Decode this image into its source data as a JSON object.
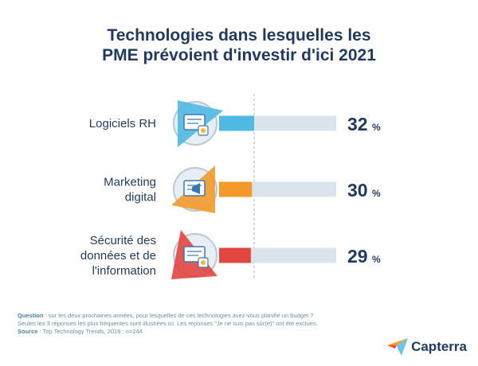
{
  "chart_data": {
    "type": "bar",
    "title": [
      "Technologies dans lesquelles les",
      "PME prévoient d'investir d'ici 2021"
    ],
    "categories": [
      [
        "Logiciels RH"
      ],
      [
        "Marketing",
        "digital"
      ],
      [
        "Sécurité des",
        "données et de",
        "l'information"
      ]
    ],
    "values": [
      32,
      30,
      29
    ],
    "value_labels": [
      "32",
      "30",
      "29"
    ],
    "value_suffix": "%",
    "colors": [
      "#4fb8e3",
      "#f39a2b",
      "#e3453f"
    ],
    "track_color": "#dbe4ec",
    "icons": [
      "hr-software-icon",
      "megaphone-icon",
      "secure-data-icon"
    ],
    "xlim": [
      0,
      100
    ],
    "grid": false,
    "legend": "none"
  },
  "footnote": {
    "question_label": "Question",
    "question_text": " : sur les deux prochaines années, pour lesquelles de ces technologies avez-vous planifié un budget ?",
    "note": "Seules les 3 réponses les plus fréquentes sont illustrées ici. Les réponses \"Je ne suis pas sûr(e)\" ont été exclues.",
    "source_label": "Source",
    "source_text": " : Top Technology Trends, 2019 ; n=244"
  },
  "brand": {
    "name": "Capterra",
    "colors": [
      "#ff9d28",
      "#68c5ed",
      "#044d80",
      "#e54747"
    ]
  }
}
